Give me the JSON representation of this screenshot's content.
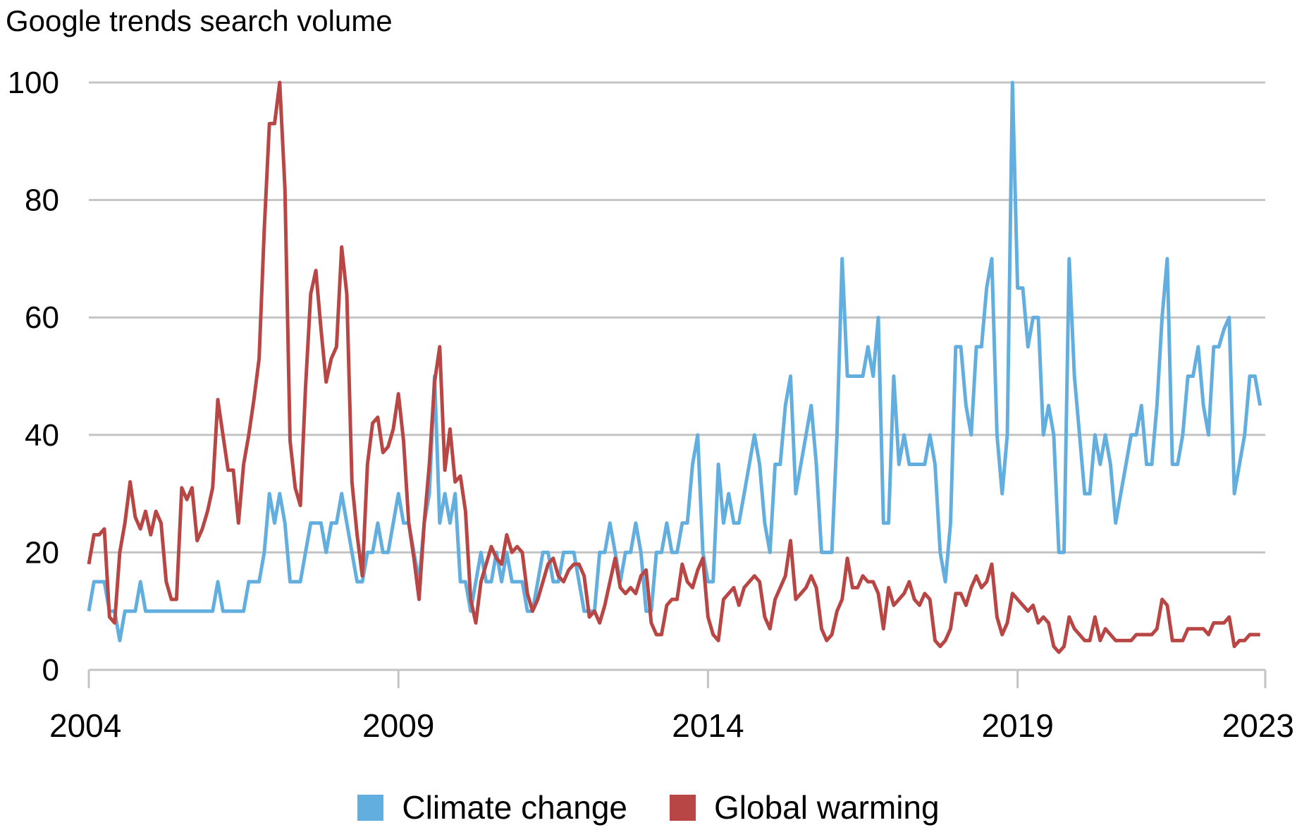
{
  "chart_data": {
    "type": "line",
    "title": "Google trends search volume",
    "xlabel": "",
    "ylabel": "",
    "x_start": "2004-01",
    "x_frequency": "monthly",
    "xlim": [
      2004,
      2023
    ],
    "xticks": [
      "2004",
      "2009",
      "2014",
      "2019",
      "2023"
    ],
    "ylim": [
      0,
      100
    ],
    "yticks": [
      "0",
      "20",
      "40",
      "60",
      "80",
      "100"
    ],
    "grid": "horizontal",
    "legend_position": "bottom",
    "series": [
      {
        "name": "Climate change",
        "color": "#62AEDF",
        "values": [
          10,
          15,
          15,
          15,
          10,
          10,
          5,
          10,
          10,
          10,
          15,
          10,
          10,
          10,
          10,
          10,
          10,
          10,
          10,
          10,
          10,
          10,
          10,
          10,
          10,
          15,
          10,
          10,
          10,
          10,
          10,
          15,
          15,
          15,
          20,
          30,
          25,
          30,
          25,
          15,
          15,
          15,
          20,
          25,
          25,
          25,
          20,
          25,
          25,
          30,
          25,
          20,
          15,
          15,
          20,
          20,
          25,
          20,
          20,
          25,
          30,
          25,
          25,
          20,
          15,
          25,
          30,
          50,
          25,
          30,
          25,
          30,
          15,
          15,
          10,
          15,
          20,
          15,
          15,
          20,
          15,
          20,
          15,
          15,
          15,
          10,
          10,
          15,
          20,
          20,
          15,
          15,
          20,
          20,
          20,
          15,
          10,
          10,
          10,
          20,
          20,
          25,
          20,
          15,
          20,
          20,
          25,
          20,
          10,
          10,
          20,
          20,
          25,
          20,
          20,
          25,
          25,
          35,
          40,
          20,
          15,
          15,
          35,
          25,
          30,
          25,
          25,
          30,
          35,
          40,
          35,
          25,
          20,
          35,
          35,
          45,
          50,
          30,
          35,
          40,
          45,
          35,
          20,
          20,
          20,
          40,
          70,
          50,
          50,
          50,
          50,
          55,
          50,
          60,
          25,
          25,
          50,
          35,
          40,
          35,
          35,
          35,
          35,
          40,
          35,
          20,
          15,
          25,
          55,
          55,
          45,
          40,
          55,
          55,
          65,
          70,
          40,
          30,
          40,
          100,
          65,
          65,
          55,
          60,
          60,
          40,
          45,
          40,
          20,
          20,
          70,
          50,
          40,
          30,
          30,
          40,
          35,
          40,
          35,
          25,
          30,
          35,
          40,
          40,
          45,
          35,
          35,
          45,
          60,
          70,
          35,
          35,
          40,
          50,
          50,
          55,
          45,
          40,
          55,
          55,
          58,
          60,
          30,
          35,
          40,
          50,
          50,
          45
        ]
      },
      {
        "name": "Global warming",
        "color": "#B84644",
        "values": [
          18,
          23,
          23,
          24,
          9,
          8,
          20,
          25,
          32,
          26,
          24,
          27,
          23,
          27,
          25,
          15,
          12,
          12,
          31,
          29,
          31,
          22,
          24,
          27,
          31,
          46,
          40,
          34,
          34,
          25,
          35,
          40,
          46,
          53,
          75,
          93,
          93,
          100,
          82,
          39,
          31,
          28,
          48,
          64,
          68,
          58,
          49,
          53,
          55,
          72,
          64,
          32,
          23,
          16,
          35,
          42,
          43,
          37,
          38,
          41,
          47,
          39,
          25,
          19,
          12,
          25,
          35,
          49,
          55,
          34,
          41,
          32,
          33,
          27,
          12,
          8,
          15,
          18,
          21,
          19,
          18,
          23,
          20,
          21,
          20,
          13,
          10,
          12,
          15,
          18,
          19,
          16,
          15,
          17,
          18,
          18,
          16,
          9,
          10,
          8,
          11,
          15,
          19,
          14,
          13,
          14,
          13,
          16,
          17,
          8,
          6,
          6,
          11,
          12,
          12,
          18,
          15,
          14,
          17,
          19,
          9,
          6,
          5,
          12,
          13,
          14,
          11,
          14,
          15,
          16,
          15,
          9,
          7,
          12,
          14,
          16,
          22,
          12,
          13,
          14,
          16,
          14,
          7,
          5,
          6,
          10,
          12,
          19,
          14,
          14,
          16,
          15,
          15,
          13,
          7,
          14,
          11,
          12,
          13,
          15,
          12,
          11,
          13,
          12,
          5,
          4,
          5,
          7,
          13,
          13,
          11,
          14,
          16,
          14,
          15,
          18,
          9,
          6,
          8,
          13,
          12,
          11,
          10,
          11,
          8,
          9,
          8,
          4,
          3,
          4,
          9,
          7,
          6,
          5,
          5,
          9,
          5,
          7,
          6,
          5,
          5,
          5,
          5,
          6,
          6,
          6,
          6,
          7,
          12,
          11,
          5,
          5,
          5,
          7,
          7,
          7,
          7,
          6,
          8,
          8,
          8,
          9,
          4,
          5,
          5,
          6,
          6,
          6
        ]
      }
    ]
  }
}
